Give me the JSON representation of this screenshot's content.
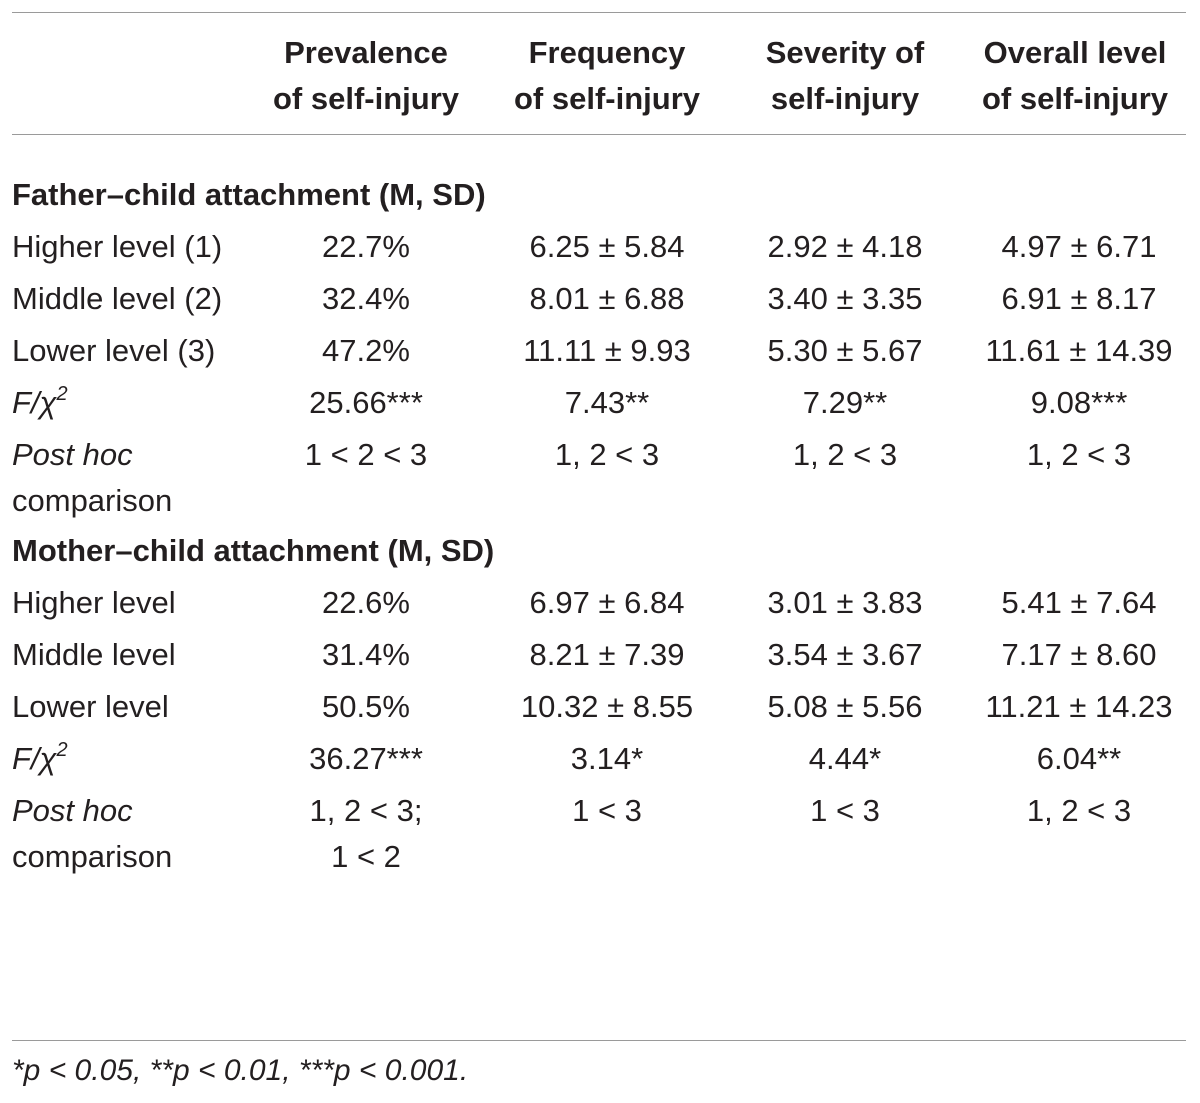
{
  "header": {
    "col1": [
      "Prevalence",
      "of self-injury"
    ],
    "col2": [
      "Frequency",
      "of self-injury"
    ],
    "col3": [
      "Severity of",
      "self-injury"
    ],
    "col4": [
      "Overall level",
      "of self-injury"
    ]
  },
  "father": {
    "title": "Father–child attachment (M, SD)",
    "rows": [
      {
        "label": "Higher level (1)",
        "prevalence": "22.7%",
        "frequency": "6.25 ± 5.84",
        "severity": "2.92 ± 4.18",
        "overall": "4.97 ± 6.71"
      },
      {
        "label": "Middle level (2)",
        "prevalence": "32.4%",
        "frequency": "8.01 ± 6.88",
        "severity": "3.40 ± 3.35",
        "overall": "6.91 ± 8.17"
      },
      {
        "label": "Lower level (3)",
        "prevalence": "47.2%",
        "frequency": "11.11 ± 9.93",
        "severity": "5.30 ± 5.67",
        "overall": "11.61 ± 14.39"
      }
    ],
    "stat": {
      "label_main": "F/χ",
      "label_sup": "2",
      "prevalence": "25.66***",
      "frequency": "7.43**",
      "severity": "7.29**",
      "overall": "9.08***"
    },
    "posthoc": {
      "label_italic": "Post hoc",
      "label_rest": "comparison",
      "prevalence": "1 < 2 < 3",
      "frequency": "1, 2 < 3",
      "severity": "1, 2 < 3",
      "overall": "1, 2 < 3"
    }
  },
  "mother": {
    "title": "Mother–child attachment (M, SD)",
    "rows": [
      {
        "label": "Higher level",
        "prevalence": "22.6%",
        "frequency": "6.97 ± 6.84",
        "severity": "3.01 ± 3.83",
        "overall": "5.41 ± 7.64"
      },
      {
        "label": "Middle level",
        "prevalence": "31.4%",
        "frequency": "8.21 ± 7.39",
        "severity": "3.54 ± 3.67",
        "overall": "7.17 ± 8.60"
      },
      {
        "label": "Lower level",
        "prevalence": "50.5%",
        "frequency": "10.32 ± 8.55",
        "severity": "5.08 ± 5.56",
        "overall": "11.21 ± 14.23"
      }
    ],
    "stat": {
      "label_main": "F/χ",
      "label_sup": "2",
      "prevalence": "36.27***",
      "frequency": "3.14*",
      "severity": "4.44*",
      "overall": "6.04**"
    },
    "posthoc": {
      "label_italic": "Post hoc",
      "label_rest": "comparison",
      "prevalence": [
        "1, 2 < 3;",
        "1 < 2"
      ],
      "frequency": "1 < 3",
      "severity": "1 < 3",
      "overall": "1, 2 < 3"
    }
  },
  "footnote": "*p < 0.05, **p < 0.01, ***p < 0.001."
}
